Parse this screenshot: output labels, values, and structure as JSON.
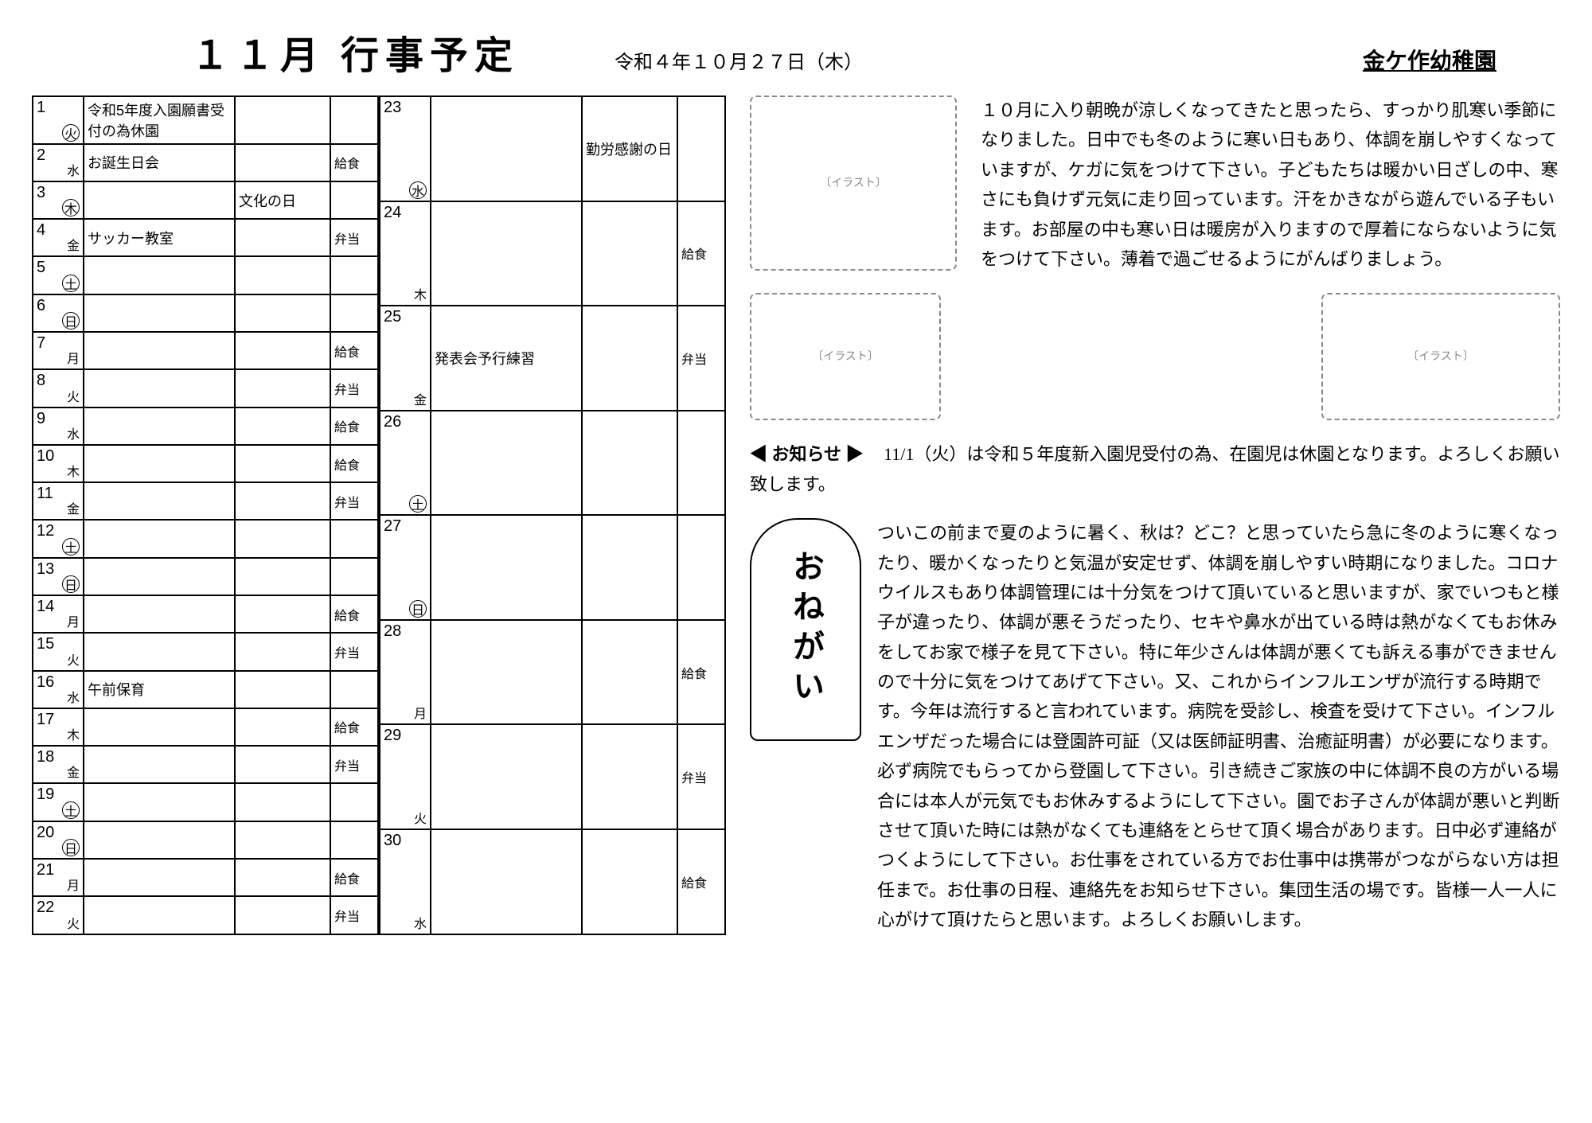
{
  "header": {
    "title": "１１月 行事予定",
    "date_issued": "令和４年１０月２７日（木）",
    "school": "金ケ作幼稚園"
  },
  "calendar": {
    "cols1": [
      {
        "d": "1",
        "w": "火",
        "wc": true,
        "event": "令和5年度入園願書受付の為休園",
        "note": "",
        "meal": ""
      },
      {
        "d": "2",
        "w": "水",
        "wc": false,
        "event": "お誕生日会",
        "note": "",
        "meal": "給食"
      },
      {
        "d": "3",
        "w": "木",
        "wc": true,
        "event": "",
        "note": "文化の日",
        "meal": ""
      },
      {
        "d": "4",
        "w": "金",
        "wc": false,
        "event": "サッカー教室",
        "note": "",
        "meal": "弁当"
      },
      {
        "d": "5",
        "w": "土",
        "wc": true,
        "event": "",
        "note": "",
        "meal": ""
      },
      {
        "d": "6",
        "w": "日",
        "wc": true,
        "event": "",
        "note": "",
        "meal": ""
      },
      {
        "d": "7",
        "w": "月",
        "wc": false,
        "event": "",
        "note": "",
        "meal": "給食"
      },
      {
        "d": "8",
        "w": "火",
        "wc": false,
        "event": "",
        "note": "",
        "meal": "弁当"
      },
      {
        "d": "9",
        "w": "水",
        "wc": false,
        "event": "",
        "note": "",
        "meal": "給食"
      },
      {
        "d": "10",
        "w": "木",
        "wc": false,
        "event": "",
        "note": "",
        "meal": "給食"
      },
      {
        "d": "11",
        "w": "金",
        "wc": false,
        "event": "",
        "note": "",
        "meal": "弁当"
      },
      {
        "d": "12",
        "w": "土",
        "wc": true,
        "event": "",
        "note": "",
        "meal": ""
      },
      {
        "d": "13",
        "w": "日",
        "wc": true,
        "event": "",
        "note": "",
        "meal": ""
      },
      {
        "d": "14",
        "w": "月",
        "wc": false,
        "event": "",
        "note": "",
        "meal": "給食"
      },
      {
        "d": "15",
        "w": "火",
        "wc": false,
        "event": "",
        "note": "",
        "meal": "弁当"
      },
      {
        "d": "16",
        "w": "水",
        "wc": false,
        "event": "午前保育",
        "note": "",
        "meal": ""
      },
      {
        "d": "17",
        "w": "木",
        "wc": false,
        "event": "",
        "note": "",
        "meal": "給食"
      },
      {
        "d": "18",
        "w": "金",
        "wc": false,
        "event": "",
        "note": "",
        "meal": "弁当"
      },
      {
        "d": "19",
        "w": "土",
        "wc": true,
        "event": "",
        "note": "",
        "meal": ""
      },
      {
        "d": "20",
        "w": "日",
        "wc": true,
        "event": "",
        "note": "",
        "meal": ""
      },
      {
        "d": "21",
        "w": "月",
        "wc": false,
        "event": "",
        "note": "",
        "meal": "給食"
      },
      {
        "d": "22",
        "w": "火",
        "wc": false,
        "event": "",
        "note": "",
        "meal": "弁当"
      }
    ],
    "cols2": [
      {
        "d": "23",
        "w": "水",
        "wc": true,
        "event": "",
        "note": "勤労感謝の日",
        "meal": ""
      },
      {
        "d": "24",
        "w": "木",
        "wc": false,
        "event": "",
        "note": "",
        "meal": "給食"
      },
      {
        "d": "25",
        "w": "金",
        "wc": false,
        "event": "発表会予行練習",
        "note": "",
        "meal": "弁当"
      },
      {
        "d": "26",
        "w": "土",
        "wc": true,
        "event": "",
        "note": "",
        "meal": ""
      },
      {
        "d": "27",
        "w": "日",
        "wc": true,
        "event": "",
        "note": "",
        "meal": ""
      },
      {
        "d": "28",
        "w": "月",
        "wc": false,
        "event": "",
        "note": "",
        "meal": "給食"
      },
      {
        "d": "29",
        "w": "火",
        "wc": false,
        "event": "",
        "note": "",
        "meal": "弁当"
      },
      {
        "d": "30",
        "w": "水",
        "wc": false,
        "event": "",
        "note": "",
        "meal": "給食"
      }
    ]
  },
  "right": {
    "para1": "１０月に入り朝晩が涼しくなってきたと思ったら、すっかり肌寒い季節になりました。日中でも冬のように寒い日もあり、体調を崩しやすくなっていますが、ケガに気をつけて下さい。子どもたちは暖かい日ざしの中、寒さにも負けず元気に走り回っています。汗をかきながら遊んでいる子もいます。お部屋の中も寒い日は暖房が入りますので厚着にならないように気をつけて下さい。薄着で過ごせるようにがんばりましょう。",
    "notice_tag": "◀ お知らせ ▶",
    "notice_text": "11/1（火）は令和５年度新入園児受付の為、在園児は休園となります。よろしくお願い致します。",
    "onegai_label": "おねがい",
    "para2": "ついこの前まで夏のように暑く、秋は？どこ？と思っていたら急に冬のように寒くなったり、暖かくなったりと気温が安定せず、体調を崩しやすい時期になりました。コロナウイルスもあり体調管理には十分気をつけて頂いていると思いますが、家でいつもと様子が違ったり、体調が悪そうだったり、セキや鼻水が出ている時は熱がなくてもお休みをしてお家で様子を見て下さい。特に年少さんは体調が悪くても訴える事ができませんので十分に気をつけてあげて下さい。又、これからインフルエンザが流行する時期です。今年は流行すると言われています。病院を受診し、検査を受けて下さい。インフルエンザだった場合には登園許可証（又は医師証明書、治癒証明書）が必要になります。必ず病院でもらってから登園して下さい。引き続きご家族の中に体調不良の方がいる場合には本人が元気でもお休みするようにして下さい。園でお子さんが体調が悪いと判断させて頂いた時には熱がなくても連絡をとらせて頂く場合があります。日中必ず連絡がつくようにして下さい。お仕事をされている方でお仕事中は携帯がつながらない方は担任まで。お仕事の日程、連絡先をお知らせ下さい。集団生活の場です。皆様一人一人に心がけて頂けたらと思います。よろしくお願いします。"
  }
}
